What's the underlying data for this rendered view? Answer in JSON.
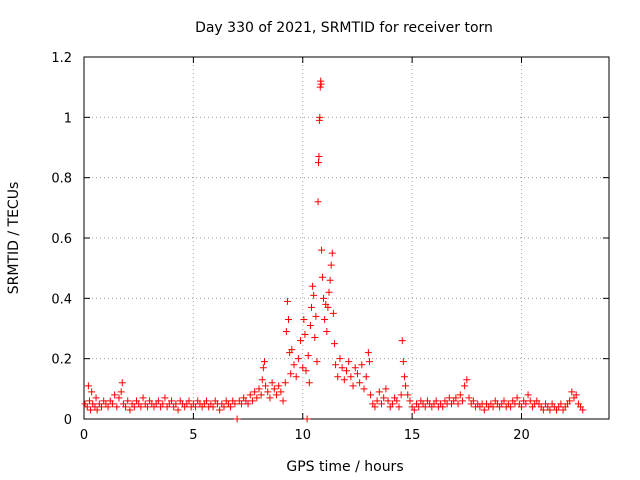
{
  "chart_data": {
    "type": "scatter",
    "title": "Day 330 of 2021, SRMTID for receiver torn",
    "xlabel": "GPS time / hours",
    "ylabel": "SRMTID / TECUs",
    "xlim": [
      0,
      24
    ],
    "ylim": [
      0,
      1.2
    ],
    "xticks": [
      0,
      5,
      10,
      15,
      20
    ],
    "xtick_labels": [
      "0",
      "5",
      "10",
      "15",
      "20"
    ],
    "yticks": [
      0,
      0.2,
      0.4,
      0.6,
      0.8,
      1.0,
      1.2
    ],
    "ytick_labels": [
      "0",
      "0.2",
      "0.4",
      "0.6",
      "0.8",
      "1",
      "1.2"
    ],
    "grid": true,
    "marker": "+",
    "color": "#ff0000",
    "series": [
      {
        "name": "SRMTID",
        "points": [
          [
            0.05,
            0.05
          ],
          [
            0.15,
            0.04
          ],
          [
            0.2,
            0.11
          ],
          [
            0.25,
            0.06
          ],
          [
            0.3,
            0.03
          ],
          [
            0.35,
            0.09
          ],
          [
            0.4,
            0.05
          ],
          [
            0.5,
            0.04
          ],
          [
            0.55,
            0.07
          ],
          [
            0.6,
            0.03
          ],
          [
            0.7,
            0.05
          ],
          [
            0.8,
            0.04
          ],
          [
            0.9,
            0.06
          ],
          [
            1.0,
            0.05
          ],
          [
            1.1,
            0.04
          ],
          [
            1.2,
            0.06
          ],
          [
            1.3,
            0.05
          ],
          [
            1.4,
            0.08
          ],
          [
            1.5,
            0.04
          ],
          [
            1.6,
            0.07
          ],
          [
            1.7,
            0.09
          ],
          [
            1.75,
            0.12
          ],
          [
            1.8,
            0.05
          ],
          [
            1.9,
            0.04
          ],
          [
            2.0,
            0.06
          ],
          [
            2.1,
            0.03
          ],
          [
            2.2,
            0.05
          ],
          [
            2.3,
            0.04
          ],
          [
            2.4,
            0.06
          ],
          [
            2.5,
            0.05
          ],
          [
            2.6,
            0.04
          ],
          [
            2.7,
            0.07
          ],
          [
            2.8,
            0.05
          ],
          [
            2.9,
            0.04
          ],
          [
            3.0,
            0.06
          ],
          [
            3.1,
            0.05
          ],
          [
            3.2,
            0.04
          ],
          [
            3.3,
            0.05
          ],
          [
            3.4,
            0.06
          ],
          [
            3.5,
            0.04
          ],
          [
            3.6,
            0.05
          ],
          [
            3.7,
            0.07
          ],
          [
            3.8,
            0.04
          ],
          [
            3.9,
            0.05
          ],
          [
            4.0,
            0.06
          ],
          [
            4.1,
            0.04
          ],
          [
            4.2,
            0.05
          ],
          [
            4.3,
            0.03
          ],
          [
            4.4,
            0.06
          ],
          [
            4.5,
            0.05
          ],
          [
            4.6,
            0.04
          ],
          [
            4.7,
            0.05
          ],
          [
            4.8,
            0.06
          ],
          [
            4.9,
            0.04
          ],
          [
            5.0,
            0.05
          ],
          [
            5.1,
            0.04
          ],
          [
            5.2,
            0.06
          ],
          [
            5.3,
            0.05
          ],
          [
            5.4,
            0.04
          ],
          [
            5.5,
            0.05
          ],
          [
            5.6,
            0.06
          ],
          [
            5.7,
            0.04
          ],
          [
            5.8,
            0.05
          ],
          [
            5.9,
            0.04
          ],
          [
            6.0,
            0.06
          ],
          [
            6.1,
            0.05
          ],
          [
            6.2,
            0.03
          ],
          [
            6.3,
            0.05
          ],
          [
            6.4,
            0.04
          ],
          [
            6.5,
            0.06
          ],
          [
            6.6,
            0.05
          ],
          [
            6.7,
            0.04
          ],
          [
            6.8,
            0.06
          ],
          [
            6.9,
            0.05
          ],
          [
            7.0,
            0.0
          ],
          [
            7.1,
            0.06
          ],
          [
            7.2,
            0.05
          ],
          [
            7.3,
            0.07
          ],
          [
            7.4,
            0.06
          ],
          [
            7.5,
            0.05
          ],
          [
            7.6,
            0.08
          ],
          [
            7.7,
            0.06
          ],
          [
            7.8,
            0.09
          ],
          [
            7.9,
            0.07
          ],
          [
            8.0,
            0.1
          ],
          [
            8.1,
            0.08
          ],
          [
            8.15,
            0.13
          ],
          [
            8.2,
            0.17
          ],
          [
            8.25,
            0.19
          ],
          [
            8.3,
            0.11
          ],
          [
            8.4,
            0.09
          ],
          [
            8.5,
            0.07
          ],
          [
            8.6,
            0.12
          ],
          [
            8.7,
            0.1
          ],
          [
            8.8,
            0.08
          ],
          [
            8.9,
            0.11
          ],
          [
            9.0,
            0.09
          ],
          [
            9.1,
            0.06
          ],
          [
            9.2,
            0.12
          ],
          [
            9.25,
            0.29
          ],
          [
            9.3,
            0.39
          ],
          [
            9.35,
            0.33
          ],
          [
            9.4,
            0.22
          ],
          [
            9.45,
            0.15
          ],
          [
            9.5,
            0.23
          ],
          [
            9.6,
            0.18
          ],
          [
            9.7,
            0.14
          ],
          [
            9.8,
            0.2
          ],
          [
            9.9,
            0.26
          ],
          [
            10.0,
            0.17
          ],
          [
            10.05,
            0.33
          ],
          [
            10.1,
            0.28
          ],
          [
            10.15,
            0.16
          ],
          [
            10.2,
            0.0
          ],
          [
            10.25,
            0.21
          ],
          [
            10.3,
            0.12
          ],
          [
            10.35,
            0.31
          ],
          [
            10.4,
            0.37
          ],
          [
            10.45,
            0.44
          ],
          [
            10.5,
            0.41
          ],
          [
            10.55,
            0.27
          ],
          [
            10.6,
            0.34
          ],
          [
            10.65,
            0.19
          ],
          [
            10.7,
            0.72
          ],
          [
            10.72,
            0.85
          ],
          [
            10.74,
            0.87
          ],
          [
            10.76,
            0.99
          ],
          [
            10.78,
            1.0
          ],
          [
            10.8,
            1.1
          ],
          [
            10.82,
            1.12
          ],
          [
            10.84,
            1.11
          ],
          [
            10.86,
            0.56
          ],
          [
            10.9,
            0.47
          ],
          [
            10.95,
            0.4
          ],
          [
            11.0,
            0.33
          ],
          [
            11.05,
            0.38
          ],
          [
            11.1,
            0.29
          ],
          [
            11.15,
            0.37
          ],
          [
            11.2,
            0.42
          ],
          [
            11.25,
            0.46
          ],
          [
            11.3,
            0.51
          ],
          [
            11.35,
            0.55
          ],
          [
            11.4,
            0.35
          ],
          [
            11.45,
            0.25
          ],
          [
            11.5,
            0.18
          ],
          [
            11.6,
            0.14
          ],
          [
            11.7,
            0.2
          ],
          [
            11.8,
            0.17
          ],
          [
            11.9,
            0.13
          ],
          [
            12.0,
            0.16
          ],
          [
            12.1,
            0.19
          ],
          [
            12.2,
            0.14
          ],
          [
            12.3,
            0.11
          ],
          [
            12.4,
            0.17
          ],
          [
            12.5,
            0.15
          ],
          [
            12.6,
            0.12
          ],
          [
            12.7,
            0.18
          ],
          [
            12.8,
            0.1
          ],
          [
            12.9,
            0.14
          ],
          [
            13.0,
            0.22
          ],
          [
            13.05,
            0.19
          ],
          [
            13.1,
            0.08
          ],
          [
            13.2,
            0.05
          ],
          [
            13.3,
            0.04
          ],
          [
            13.4,
            0.06
          ],
          [
            13.5,
            0.09
          ],
          [
            13.6,
            0.05
          ],
          [
            13.7,
            0.07
          ],
          [
            13.8,
            0.1
          ],
          [
            13.9,
            0.06
          ],
          [
            14.0,
            0.04
          ],
          [
            14.1,
            0.05
          ],
          [
            14.2,
            0.07
          ],
          [
            14.3,
            0.06
          ],
          [
            14.4,
            0.04
          ],
          [
            14.5,
            0.08
          ],
          [
            14.55,
            0.26
          ],
          [
            14.6,
            0.19
          ],
          [
            14.65,
            0.14
          ],
          [
            14.7,
            0.11
          ],
          [
            14.8,
            0.08
          ],
          [
            14.9,
            0.06
          ],
          [
            15.0,
            0.04
          ],
          [
            15.1,
            0.03
          ],
          [
            15.2,
            0.05
          ],
          [
            15.3,
            0.04
          ],
          [
            15.4,
            0.06
          ],
          [
            15.5,
            0.05
          ],
          [
            15.6,
            0.04
          ],
          [
            15.7,
            0.06
          ],
          [
            15.8,
            0.05
          ],
          [
            15.9,
            0.04
          ],
          [
            16.0,
            0.05
          ],
          [
            16.1,
            0.06
          ],
          [
            16.2,
            0.04
          ],
          [
            16.3,
            0.05
          ],
          [
            16.4,
            0.04
          ],
          [
            16.5,
            0.06
          ],
          [
            16.6,
            0.05
          ],
          [
            16.7,
            0.07
          ],
          [
            16.8,
            0.05
          ],
          [
            16.9,
            0.06
          ],
          [
            17.0,
            0.07
          ],
          [
            17.1,
            0.05
          ],
          [
            17.2,
            0.08
          ],
          [
            17.3,
            0.06
          ],
          [
            17.4,
            0.11
          ],
          [
            17.5,
            0.13
          ],
          [
            17.6,
            0.07
          ],
          [
            17.7,
            0.05
          ],
          [
            17.8,
            0.06
          ],
          [
            17.9,
            0.04
          ],
          [
            18.0,
            0.05
          ],
          [
            18.1,
            0.04
          ],
          [
            18.2,
            0.05
          ],
          [
            18.3,
            0.03
          ],
          [
            18.4,
            0.05
          ],
          [
            18.5,
            0.04
          ],
          [
            18.6,
            0.05
          ],
          [
            18.7,
            0.04
          ],
          [
            18.8,
            0.06
          ],
          [
            18.9,
            0.05
          ],
          [
            19.0,
            0.04
          ],
          [
            19.1,
            0.05
          ],
          [
            19.2,
            0.06
          ],
          [
            19.3,
            0.04
          ],
          [
            19.4,
            0.05
          ],
          [
            19.5,
            0.04
          ],
          [
            19.6,
            0.06
          ],
          [
            19.7,
            0.05
          ],
          [
            19.8,
            0.07
          ],
          [
            19.9,
            0.05
          ],
          [
            20.0,
            0.04
          ],
          [
            20.1,
            0.06
          ],
          [
            20.2,
            0.05
          ],
          [
            20.3,
            0.08
          ],
          [
            20.4,
            0.06
          ],
          [
            20.5,
            0.04
          ],
          [
            20.6,
            0.05
          ],
          [
            20.7,
            0.06
          ],
          [
            20.8,
            0.05
          ],
          [
            20.9,
            0.04
          ],
          [
            21.0,
            0.03
          ],
          [
            21.1,
            0.05
          ],
          [
            21.2,
            0.04
          ],
          [
            21.3,
            0.03
          ],
          [
            21.4,
            0.05
          ],
          [
            21.5,
            0.04
          ],
          [
            21.6,
            0.03
          ],
          [
            21.7,
            0.04
          ],
          [
            21.8,
            0.05
          ],
          [
            21.9,
            0.03
          ],
          [
            22.0,
            0.04
          ],
          [
            22.1,
            0.05
          ],
          [
            22.2,
            0.06
          ],
          [
            22.3,
            0.09
          ],
          [
            22.4,
            0.07
          ],
          [
            22.5,
            0.08
          ],
          [
            22.6,
            0.05
          ],
          [
            22.7,
            0.04
          ],
          [
            22.8,
            0.03
          ]
        ]
      }
    ]
  }
}
